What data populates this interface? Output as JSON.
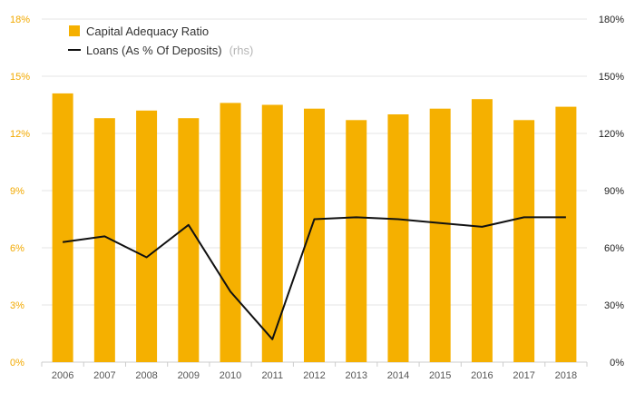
{
  "chart_data": {
    "type": "bar",
    "categories": [
      "2006",
      "2007",
      "2008",
      "2009",
      "2010",
      "2011",
      "2012",
      "2013",
      "2014",
      "2015",
      "2016",
      "2017",
      "2018"
    ],
    "series": [
      {
        "name": "Capital Adequacy Ratio",
        "type": "bar",
        "axis": "left",
        "color": "#f5b000",
        "values": [
          14.1,
          12.8,
          13.2,
          12.8,
          13.6,
          13.5,
          13.3,
          12.7,
          13.0,
          13.3,
          13.8,
          12.7,
          13.4
        ]
      },
      {
        "name": "Loans (As % Of Deposits)",
        "name_suffix": "(rhs)",
        "type": "line",
        "axis": "right",
        "color": "#111111",
        "values": [
          63,
          66,
          55,
          72,
          37,
          12,
          75,
          76,
          75,
          73,
          71,
          76,
          76
        ]
      }
    ],
    "y_left": {
      "ticks": [
        0,
        3,
        6,
        9,
        12,
        15,
        18
      ],
      "ylim": [
        0,
        18
      ],
      "unit": "%"
    },
    "y_right": {
      "ticks": [
        0,
        30,
        60,
        90,
        120,
        150,
        180
      ],
      "ylim": [
        0,
        180
      ],
      "unit": "%"
    },
    "grid": true,
    "legend": "top-left",
    "title": "",
    "xlabel": "",
    "ylabel": ""
  }
}
